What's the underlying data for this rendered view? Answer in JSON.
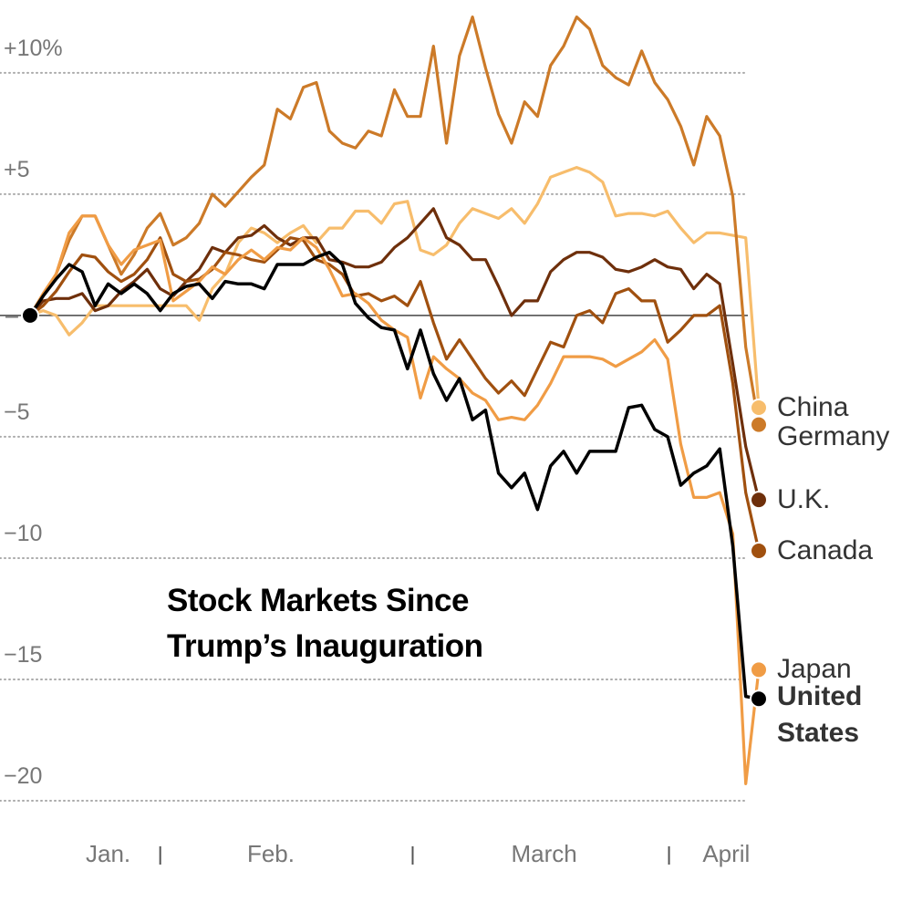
{
  "chart_data": {
    "type": "line",
    "title": "Stock Markets Since Trump’s Inauguration",
    "x": [
      0,
      1,
      2,
      3,
      4,
      5,
      6,
      7,
      8,
      9,
      10,
      11,
      12,
      13,
      14,
      15,
      16,
      17,
      18,
      19,
      20,
      21,
      22,
      23,
      24,
      25,
      26,
      27,
      28,
      29,
      30,
      31,
      32,
      33,
      34,
      35,
      36,
      37,
      38,
      39,
      40,
      41,
      42,
      43,
      44,
      45,
      46,
      47,
      48,
      49,
      50,
      51,
      52,
      53,
      54,
      55,
      56
    ],
    "xlim": [
      0,
      56
    ],
    "xticks": [
      {
        "value": 6,
        "label": "Jan."
      },
      {
        "value": 18.5,
        "label": "Feb."
      },
      {
        "value": 39.5,
        "label": "March"
      },
      {
        "value": 53.5,
        "label": "April"
      }
    ],
    "xminorticks": [
      10,
      29.4,
      49.1
    ],
    "ylim": [
      -20.45,
      13.0
    ],
    "yticks": [
      {
        "value": 10,
        "label": "+10%"
      },
      {
        "value": 5,
        "label": "+5"
      },
      {
        "value": 0,
        "label": "–"
      },
      {
        "value": -5,
        "label": "−5"
      },
      {
        "value": -10,
        "label": "−10"
      },
      {
        "value": -15,
        "label": "−15"
      },
      {
        "value": -20,
        "label": "−20"
      }
    ],
    "grid": true,
    "series": [
      {
        "name": "China",
        "color": "#f7bd6c",
        "values": [
          0,
          0.2,
          0,
          -0.8,
          -0.3,
          0.4,
          0.4,
          0.4,
          0.4,
          0.4,
          0.4,
          0.4,
          0.4,
          -0.2,
          1.1,
          1.7,
          3.0,
          3.6,
          3.4,
          3.0,
          3.4,
          3.7,
          3.0,
          3.6,
          3.6,
          4.3,
          4.3,
          3.8,
          4.6,
          4.7,
          2.7,
          2.5,
          2.9,
          3.8,
          4.4,
          4.2,
          4.0,
          4.4,
          3.8,
          4.6,
          5.7,
          5.9,
          6.1,
          5.9,
          5.5,
          4.1,
          4.2,
          4.2,
          4.1,
          4.3,
          3.6,
          3.0,
          3.4,
          3.4,
          3.3,
          3.2,
          -3.8
        ]
      },
      {
        "name": "Germany",
        "color": "#cc7a28",
        "values": [
          0,
          0.8,
          1.7,
          3.1,
          4.1,
          4.1,
          2.9,
          1.7,
          2.5,
          3.6,
          4.2,
          2.9,
          3.2,
          3.8,
          5.0,
          4.5,
          5.1,
          5.7,
          6.2,
          8.5,
          8.1,
          9.4,
          9.6,
          7.6,
          7.1,
          6.9,
          7.6,
          7.4,
          9.3,
          8.2,
          8.2,
          11.1,
          7.1,
          10.7,
          12.3,
          10.2,
          8.3,
          7.1,
          8.8,
          8.2,
          10.3,
          11.1,
          12.3,
          11.8,
          10.3,
          9.8,
          9.5,
          10.9,
          9.6,
          8.9,
          7.8,
          6.2,
          8.2,
          7.4,
          4.9,
          -1.3,
          -4.5
        ]
      },
      {
        "name": "U.K.",
        "color": "#6e2f0b",
        "values": [
          0,
          0.6,
          0.7,
          0.7,
          0.9,
          0.2,
          0.4,
          1.0,
          1.4,
          1.9,
          1.1,
          0.8,
          1.4,
          1.9,
          2.8,
          2.6,
          3.2,
          3.3,
          3.7,
          3.2,
          2.9,
          3.2,
          3.2,
          2.3,
          2.2,
          2.0,
          2.0,
          2.2,
          2.8,
          3.2,
          3.8,
          4.4,
          3.2,
          2.9,
          2.3,
          2.3,
          1.2,
          0,
          0.6,
          0.6,
          1.8,
          2.3,
          2.6,
          2.6,
          2.4,
          1.9,
          1.8,
          2.0,
          2.3,
          2.0,
          1.9,
          1.1,
          1.7,
          1.3,
          -2.0,
          -5.4,
          -7.6
        ]
      },
      {
        "name": "Canada",
        "color": "#a0500f",
        "values": [
          0,
          0.4,
          1.0,
          1.8,
          2.5,
          2.4,
          1.8,
          1.4,
          1.7,
          2.3,
          3.2,
          1.7,
          1.4,
          1.5,
          1.9,
          2.6,
          2.5,
          2.3,
          2.2,
          2.7,
          3.2,
          3.1,
          2.3,
          2.1,
          1.7,
          0.8,
          0.9,
          0.6,
          0.8,
          0.4,
          1.4,
          -0.3,
          -1.8,
          -1.0,
          -1.8,
          -2.6,
          -3.2,
          -2.7,
          -3.3,
          -2.2,
          -1.1,
          -1.3,
          0.0,
          0.2,
          -0.3,
          0.9,
          1.1,
          0.6,
          0.6,
          -1.1,
          -0.6,
          0.0,
          0.0,
          0.4,
          -2.8,
          -7.3,
          -9.7
        ]
      },
      {
        "name": "Japan",
        "color": "#f09c45",
        "values": [
          0,
          0.9,
          1.7,
          3.4,
          4.1,
          4.1,
          2.9,
          2.1,
          2.7,
          2.9,
          3.1,
          0.6,
          1.0,
          1.4,
          2.0,
          1.7,
          2.3,
          2.7,
          2.3,
          2.8,
          2.7,
          3.2,
          2.8,
          1.9,
          0.8,
          0.9,
          0.5,
          -0.2,
          -0.6,
          -0.9,
          -3.4,
          -1.7,
          -2.2,
          -2.6,
          -3.2,
          -3.5,
          -4.3,
          -4.2,
          -4.3,
          -3.7,
          -2.8,
          -1.7,
          -1.7,
          -1.7,
          -1.8,
          -2.1,
          -1.8,
          -1.5,
          -1.0,
          -1.8,
          -5.3,
          -7.5,
          -7.5,
          -7.3,
          -9.0,
          -19.3,
          -14.6
        ]
      },
      {
        "name": "United States",
        "color": "#000000",
        "values": [
          0,
          0.8,
          1.5,
          2.1,
          1.8,
          0.4,
          1.3,
          0.9,
          1.3,
          0.9,
          0.2,
          0.9,
          1.2,
          1.3,
          0.7,
          1.4,
          1.3,
          1.3,
          1.1,
          2.1,
          2.1,
          2.1,
          2.4,
          2.6,
          2.1,
          0.5,
          -0.1,
          -0.5,
          -0.6,
          -2.2,
          -0.6,
          -2.4,
          -3.5,
          -2.6,
          -4.3,
          -3.9,
          -6.5,
          -7.1,
          -6.5,
          -8.0,
          -6.2,
          -5.6,
          -6.5,
          -5.6,
          -5.6,
          -5.6,
          -3.8,
          -3.7,
          -4.7,
          -5.0,
          -7.0,
          -6.5,
          -6.2,
          -5.5,
          -9.5,
          -15.7,
          -15.8
        ]
      }
    ]
  }
}
